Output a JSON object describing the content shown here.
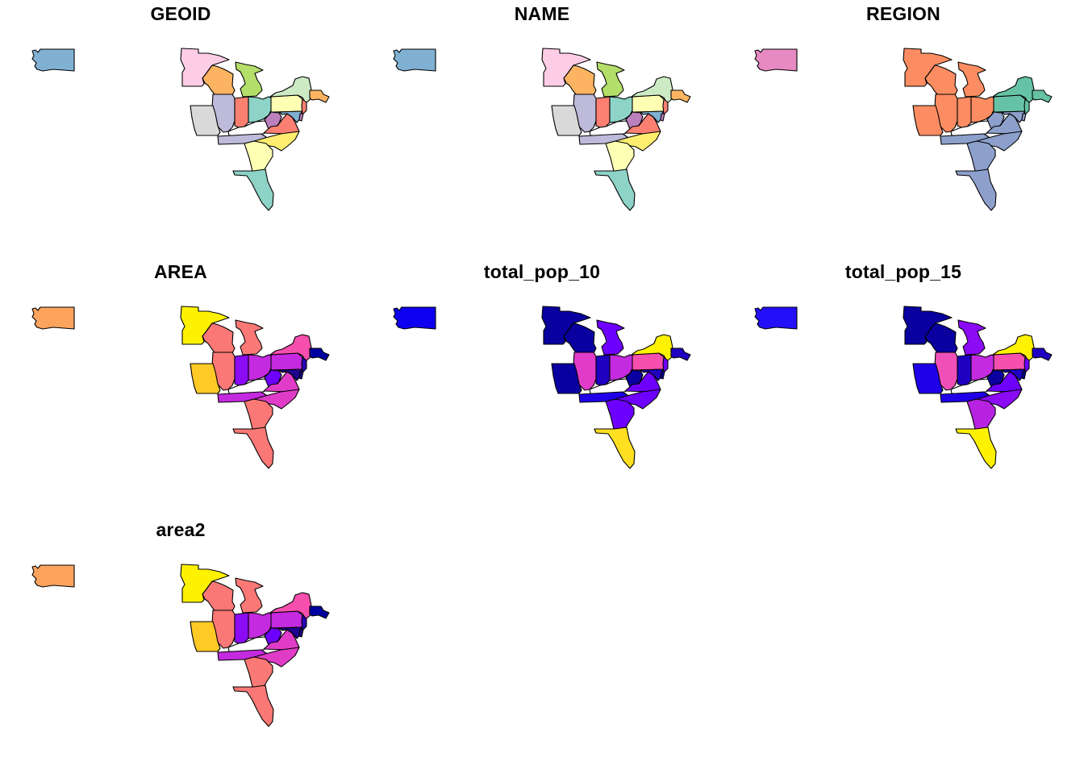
{
  "figure": {
    "panels": [
      {
        "id": "geoid",
        "title": "GEOID",
        "fills": {
          "WA": "#80B1D3",
          "MN": "#FCCDE5",
          "WI": "#FDB462",
          "MI": "#B3DE69",
          "IL": "#BEBADA",
          "IN": "#FB8072",
          "OH": "#8DD3C7",
          "PA": "#FFFFB3",
          "NY": "#CCEBC5",
          "MA": "#FDB462",
          "MO": "#D9D9D9",
          "KY": "#FFFFFF",
          "WV": "#BC80BD",
          "VA": "#FB8072",
          "MD": "#80B1D3",
          "NJ": "#FB8072",
          "DE": "#BC80BD",
          "TN": "#BEBADA",
          "NC": "#FFED6F",
          "GA": "#FFFFB3",
          "FL": "#8DD3C7"
        }
      },
      {
        "id": "name",
        "title": "NAME",
        "fills": {
          "WA": "#80B1D3",
          "MN": "#FCCDE5",
          "WI": "#FDB462",
          "MI": "#B3DE69",
          "IL": "#BEBADA",
          "IN": "#FB8072",
          "OH": "#8DD3C7",
          "PA": "#FFFFB3",
          "NY": "#CCEBC5",
          "MA": "#FDB462",
          "MO": "#D9D9D9",
          "KY": "#FFFFFF",
          "WV": "#BC80BD",
          "VA": "#FB8072",
          "MD": "#80B1D3",
          "NJ": "#FB8072",
          "DE": "#BC80BD",
          "TN": "#BEBADA",
          "NC": "#FFED6F",
          "GA": "#FFFFB3",
          "FL": "#8DD3C7"
        }
      },
      {
        "id": "region",
        "title": "REGION",
        "fills": {
          "WA": "#E78AC3",
          "MN": "#FC8D62",
          "WI": "#FC8D62",
          "MI": "#FC8D62",
          "IL": "#FC8D62",
          "IN": "#FC8D62",
          "OH": "#FC8D62",
          "PA": "#66C2A5",
          "NY": "#66C2A5",
          "MA": "#66C2A5",
          "MO": "#FC8D62",
          "KY": "#FFFFFF",
          "WV": "#8DA0CB",
          "VA": "#8DA0CB",
          "MD": "#8DA0CB",
          "NJ": "#66C2A5",
          "DE": "#8DA0CB",
          "TN": "#8DA0CB",
          "NC": "#8DA0CB",
          "GA": "#8DA0CB",
          "FL": "#8DA0CB"
        }
      },
      {
        "id": "area",
        "title": "AREA",
        "fills": {
          "WA": "#FCA35D",
          "MN": "#FFF200",
          "WI": "#FA7876",
          "MI": "#FA7876",
          "IL": "#FA7876",
          "IN": "#8A0BF4",
          "OH": "#C42ADF",
          "PA": "#C42ADF",
          "NY": "#F64FAE",
          "MA": "#0000A0",
          "MO": "#FFC926",
          "KY": "#FFFFFF",
          "WV": "#6E00FF",
          "VA": "#E03CC8",
          "MD": "#1F0090",
          "NJ": "#2A00B8",
          "DE": "#1F0090",
          "TN": "#C42ADF",
          "NC": "#E03CC8",
          "GA": "#FA7876",
          "FL": "#FA7876"
        }
      },
      {
        "id": "total_pop_10",
        "title": "total_pop_10",
        "fills": {
          "WA": "#0D00F0",
          "MN": "#0A00A0",
          "WI": "#0A00A0",
          "MI": "#6E00FF",
          "IL": "#E03CC8",
          "IN": "#1F00C0",
          "OH": "#C42ADF",
          "PA": "#F64FAE",
          "NY": "#FFF200",
          "MA": "#1F00C0",
          "MO": "#0A00A0",
          "KY": "#FFFFFF",
          "WV": "#0A00A0",
          "VA": "#6E00FF",
          "MD": "#1F00C0",
          "NJ": "#6E00FF",
          "DE": "#0A00A0",
          "TN": "#1F00E8",
          "NC": "#6E00FF",
          "GA": "#6E00FF",
          "FL": "#FFE020"
        }
      },
      {
        "id": "total_pop_15",
        "title": "total_pop_15",
        "fills": {
          "WA": "#2410F8",
          "MN": "#0A00A0",
          "WI": "#0A00A0",
          "MI": "#8A0BF4",
          "IL": "#F04FB8",
          "IN": "#1F00C0",
          "OH": "#C42ADF",
          "PA": "#F64FAE",
          "NY": "#FFF200",
          "MA": "#1F00C0",
          "MO": "#1F00E8",
          "KY": "#FFFFFF",
          "WV": "#0A00A0",
          "VA": "#6E00FF",
          "MD": "#1F00C0",
          "NJ": "#6E00FF",
          "DE": "#0A00A0",
          "TN": "#1F00E8",
          "NC": "#8A0BF4",
          "GA": "#B722E0",
          "FL": "#FFF200"
        }
      },
      {
        "id": "area2",
        "title": "area2",
        "fills": {
          "WA": "#FCA35D",
          "MN": "#FFF200",
          "WI": "#FA7876",
          "MI": "#FA7876",
          "IL": "#FA7876",
          "IN": "#8A0BF4",
          "OH": "#C42ADF",
          "PA": "#C42ADF",
          "NY": "#F64FAE",
          "MA": "#0000A0",
          "MO": "#FFC926",
          "KY": "#FFFFFF",
          "WV": "#6E00FF",
          "VA": "#E03CC8",
          "MD": "#1F0090",
          "NJ": "#2A00B8",
          "DE": "#1F0090",
          "TN": "#C42ADF",
          "NC": "#E03CC8",
          "GA": "#FA7876",
          "FL": "#FA7876"
        }
      }
    ]
  }
}
